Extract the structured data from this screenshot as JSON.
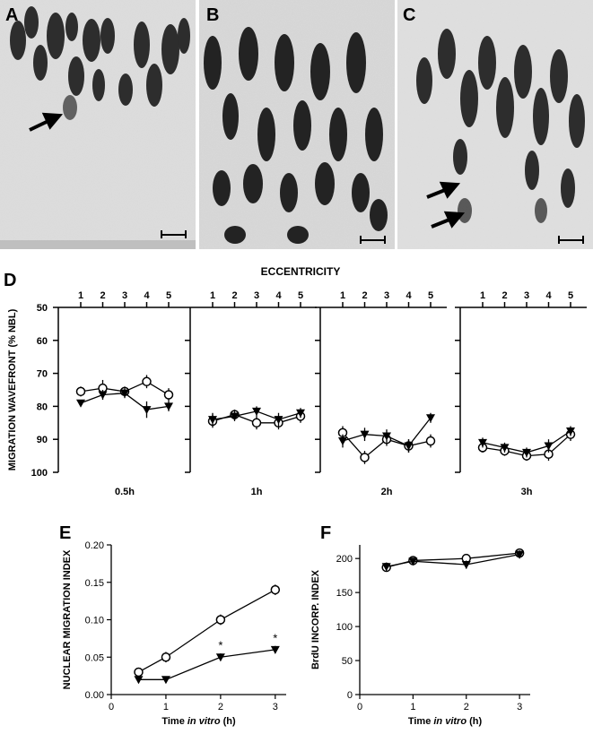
{
  "panels": {
    "A": "A",
    "B": "B",
    "C": "C",
    "D": "D",
    "E": "E",
    "F": "F"
  },
  "chart_data": [
    {
      "panel": "D",
      "type": "line",
      "title": "ECCENTRICITY",
      "ylabel": "MIGRATION WAVEFRONT (% NBL)",
      "y_ticks": [
        "50",
        "60",
        "70",
        "80",
        "90",
        "100"
      ],
      "ylim": [
        50,
        100
      ],
      "y_inverted": true,
      "x_ticks": [
        "1",
        "2",
        "3",
        "4",
        "5"
      ],
      "marker_styles": [
        "open-circle",
        "filled-triangle-down"
      ],
      "subplots": [
        {
          "label": "0.5h",
          "series": [
            {
              "marker": "open-circle",
              "x": [
                1,
                2,
                3,
                4,
                5
              ],
              "y": [
                75.5,
                74.5,
                75.5,
                72.5,
                76.5
              ],
              "err": [
                1.5,
                2.5,
                1.5,
                2,
                2
              ]
            },
            {
              "marker": "filled-triangle-down",
              "x": [
                1,
                2,
                3,
                4,
                5
              ],
              "y": [
                79,
                76.5,
                76,
                81,
                80
              ],
              "err": [
                1,
                1.5,
                1.5,
                2.5,
                1.5
              ]
            }
          ]
        },
        {
          "label": "1h",
          "series": [
            {
              "marker": "open-circle",
              "x": [
                1,
                2,
                3,
                4,
                5
              ],
              "y": [
                84.5,
                82.5,
                85,
                85,
                83
              ],
              "err": [
                2,
                1.5,
                2,
                2,
                2
              ]
            },
            {
              "marker": "filled-triangle-down",
              "x": [
                1,
                2,
                3,
                4,
                5
              ],
              "y": [
                84,
                83,
                81.5,
                84,
                82
              ],
              "err": [
                2,
                1.5,
                1.5,
                2,
                1.5
              ]
            }
          ]
        },
        {
          "label": "2h",
          "series": [
            {
              "marker": "open-circle",
              "x": [
                1,
                2,
                3,
                4,
                5
              ],
              "y": [
                88,
                95.5,
                90,
                92,
                90.5
              ],
              "err": [
                2,
                2,
                2,
                2,
                2
              ]
            },
            {
              "marker": "filled-triangle-down",
              "x": [
                1,
                2,
                3,
                4,
                5
              ],
              "y": [
                90.5,
                88.5,
                89,
                92,
                83.5
              ],
              "err": [
                2,
                2,
                2,
                2,
                1.5
              ]
            }
          ]
        },
        {
          "label": "3h",
          "series": [
            {
              "marker": "open-circle",
              "x": [
                1,
                2,
                3,
                4,
                5
              ],
              "y": [
                92.5,
                93.5,
                95,
                94.5,
                88.5
              ],
              "err": [
                1.5,
                1.5,
                1.5,
                2,
                2
              ]
            },
            {
              "marker": "filled-triangle-down",
              "x": [
                1,
                2,
                3,
                4,
                5
              ],
              "y": [
                91,
                92.5,
                94,
                92,
                87.5
              ],
              "err": [
                1.5,
                1.5,
                1.5,
                2,
                1.5
              ]
            }
          ]
        }
      ]
    },
    {
      "panel": "E",
      "type": "line",
      "ylabel": "NUCLEAR MIGRATION INDEX",
      "xlabel_pre": "Time ",
      "xlabel_italic": "in vitro",
      "xlabel_post": " (h)",
      "xlim": [
        0,
        3.2
      ],
      "ylim": [
        0,
        0.2
      ],
      "x_ticks": [
        0,
        1,
        2,
        3
      ],
      "x_tick_labels": [
        "0",
        "1",
        "2",
        "3"
      ],
      "y_ticks": [
        0,
        0.05,
        0.1,
        0.15,
        0.2
      ],
      "y_tick_labels": [
        "0.00",
        "0.05",
        "0.10",
        "0.15",
        "0.20"
      ],
      "series": [
        {
          "marker": "open-circle",
          "x": [
            0.5,
            1,
            2,
            3
          ],
          "y": [
            0.03,
            0.05,
            0.1,
            0.14
          ],
          "err": [
            0.003,
            0.007,
            0.007,
            0.007
          ]
        },
        {
          "marker": "filled-triangle-down",
          "x": [
            0.5,
            1,
            2,
            3
          ],
          "y": [
            0.02,
            0.02,
            0.05,
            0.06
          ],
          "err": [
            0.002,
            0.002,
            0.005,
            0.005
          ]
        }
      ],
      "annotations": [
        {
          "x": 2,
          "y": 0.065,
          "text": "*"
        },
        {
          "x": 3,
          "y": 0.075,
          "text": "*"
        }
      ]
    },
    {
      "panel": "F",
      "type": "line",
      "ylabel": "BrdU INCORP. INDEX",
      "xlabel_pre": "Time ",
      "xlabel_italic": "in vitro",
      "xlabel_post": " (h)",
      "xlim": [
        0,
        3.2
      ],
      "ylim": [
        0,
        220
      ],
      "x_ticks": [
        0,
        1,
        2,
        3
      ],
      "x_tick_labels": [
        "0",
        "1",
        "2",
        "3"
      ],
      "y_ticks": [
        0,
        50,
        100,
        150,
        200
      ],
      "y_tick_labels": [
        "0",
        "50",
        "100",
        "150",
        "200"
      ],
      "series": [
        {
          "marker": "open-circle",
          "x": [
            0.5,
            1,
            2,
            3
          ],
          "y": [
            187,
            197,
            200,
            208
          ],
          "err": [
            6,
            5,
            5,
            6
          ]
        },
        {
          "marker": "filled-triangle-down",
          "x": [
            0.5,
            1,
            2,
            3
          ],
          "y": [
            188,
            196,
            191,
            206
          ],
          "err": [
            6,
            5,
            6,
            6
          ]
        }
      ]
    }
  ]
}
